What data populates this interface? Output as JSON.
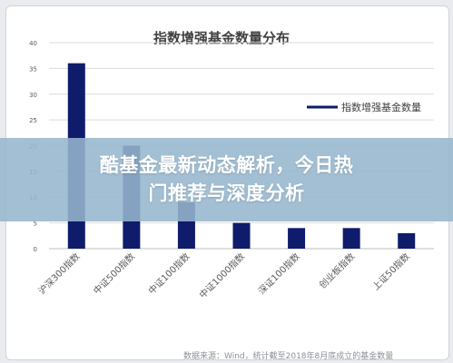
{
  "overlay": {
    "line1": "酷基金最新动态解析，今日热",
    "line2": "门推荐与深度分析"
  },
  "source_note": "数据来源：Wind，统计截至2018年8月底成立的基金数量",
  "colors": {
    "bar": "#0f1c6b",
    "grid": "#dcdcdc",
    "axis": "#bfbfbf",
    "text": "#595959",
    "overlay": "#96b6cd"
  },
  "chart_data": {
    "type": "bar",
    "title": "指数增强基金数量分布",
    "categories": [
      "沪深300指数",
      "中证500指数",
      "中证100指数",
      "中证1000指数",
      "深证100指数",
      "创业板指数",
      "上证50指数"
    ],
    "series": [
      {
        "name": "指数增强基金数量",
        "values": [
          36,
          20,
          9,
          5,
          4,
          4,
          3
        ]
      }
    ],
    "ylim": [
      0,
      40
    ],
    "yticks": [
      0,
      5,
      10,
      15,
      20,
      25,
      30,
      35,
      40
    ],
    "grid": true,
    "legend": "top-right",
    "xlabel": "",
    "ylabel": ""
  }
}
